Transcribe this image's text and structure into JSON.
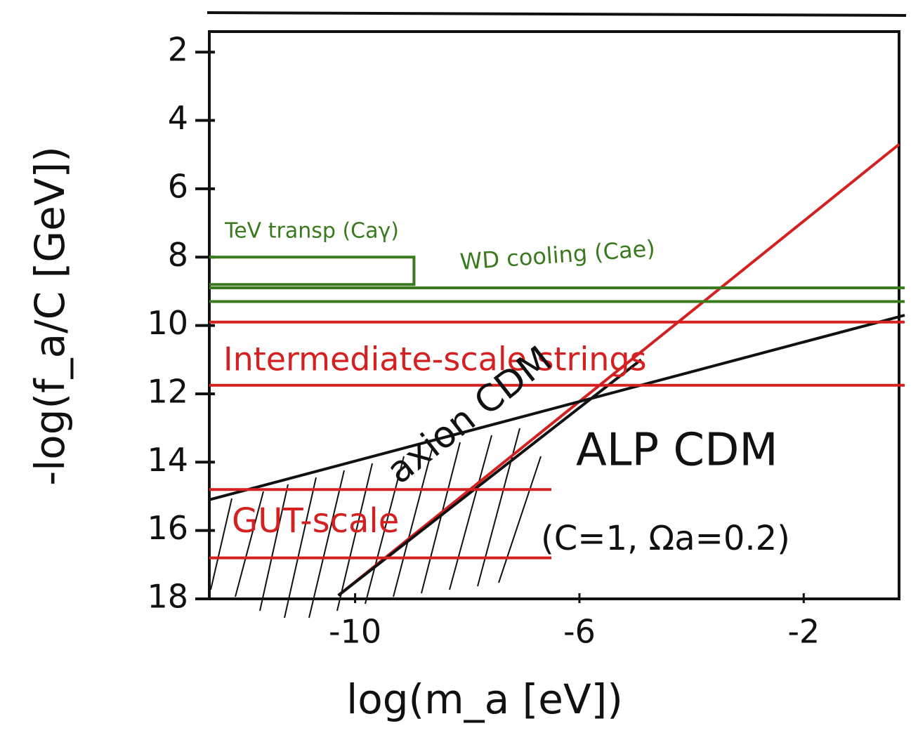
{
  "chart_data": {
    "type": "line",
    "x_label": "log(m_a [eV])",
    "y_label": "-log(f_a/C [GeV])",
    "xlim": [
      -12.6,
      -0.3
    ],
    "ylim": [
      18,
      1.4
    ],
    "xticks": [
      -10,
      -6,
      -2
    ],
    "yticks": [
      2,
      4,
      6,
      8,
      10,
      12,
      14,
      16,
      18
    ],
    "series": [
      {
        "color": "#d42020",
        "x": [
          -10.3,
          -0.3
        ],
        "y": [
          17.9,
          4.7
        ]
      },
      {
        "color": "#111111",
        "x": [
          -12.6,
          -0.2
        ],
        "y": [
          15.1,
          9.7
        ]
      },
      {
        "color": "#111111",
        "x": [
          -10.3,
          -4.9
        ],
        "y": [
          17.9,
          11.0
        ]
      },
      {
        "color": "#3a7a1e",
        "x": [
          -12.6,
          -8.95,
          -8.95,
          -12.6
        ],
        "y": [
          8.0,
          8.0,
          8.8,
          8.8
        ]
      },
      {
        "color": "#3a7a1e",
        "x": [
          -12.6,
          -0.2
        ],
        "y": [
          8.9,
          8.9
        ]
      },
      {
        "color": "#3a7a1e",
        "x": [
          -12.6,
          -0.2
        ],
        "y": [
          9.3,
          9.3
        ]
      },
      {
        "color": "#d42020",
        "x": [
          -12.6,
          -0.2
        ],
        "y": [
          9.9,
          9.9
        ]
      },
      {
        "color": "#d42020",
        "x": [
          -12.6,
          -0.2
        ],
        "y": [
          11.75,
          11.75
        ]
      },
      {
        "color": "#d42020",
        "x": [
          -12.6,
          -6.5
        ],
        "y": [
          14.8,
          14.8
        ]
      },
      {
        "color": "#d42020",
        "x": [
          -12.6,
          -6.5
        ],
        "y": [
          16.8,
          16.8
        ]
      }
    ],
    "annotations": [
      {
        "text": "TeV transp (Caγ)",
        "color": "#3a7a1e"
      },
      {
        "text": "WD cooling (Cae)",
        "color": "#3a7a1e"
      },
      {
        "text": "Intermediate-scale strings",
        "color": "#d42020"
      },
      {
        "text": "axion CDM",
        "color": "#111111"
      },
      {
        "text": "ALP CDM",
        "color": "#111111"
      },
      {
        "text": "GUT-scale",
        "color": "#d42020"
      },
      {
        "text": "(C=1, Ωa=0.2)",
        "color": "#111111"
      }
    ]
  }
}
